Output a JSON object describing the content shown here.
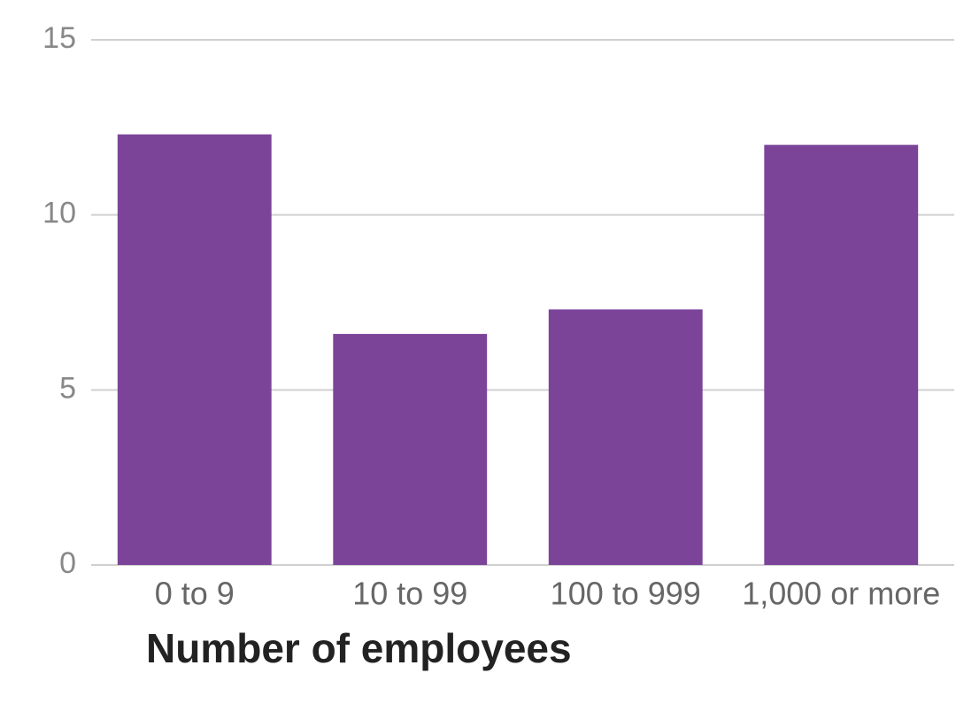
{
  "chart_data": {
    "type": "bar",
    "x_label": "Number of employees",
    "categories": [
      "0 to 9",
      "10 to 99",
      "100 to 999",
      "1,000 or more"
    ],
    "values": [
      12.3,
      6.6,
      7.3,
      12.0
    ],
    "color": "#7b4499",
    "ylim": [
      0,
      15
    ],
    "yticks": [
      0,
      5,
      10,
      15
    ],
    "grid": true
  }
}
